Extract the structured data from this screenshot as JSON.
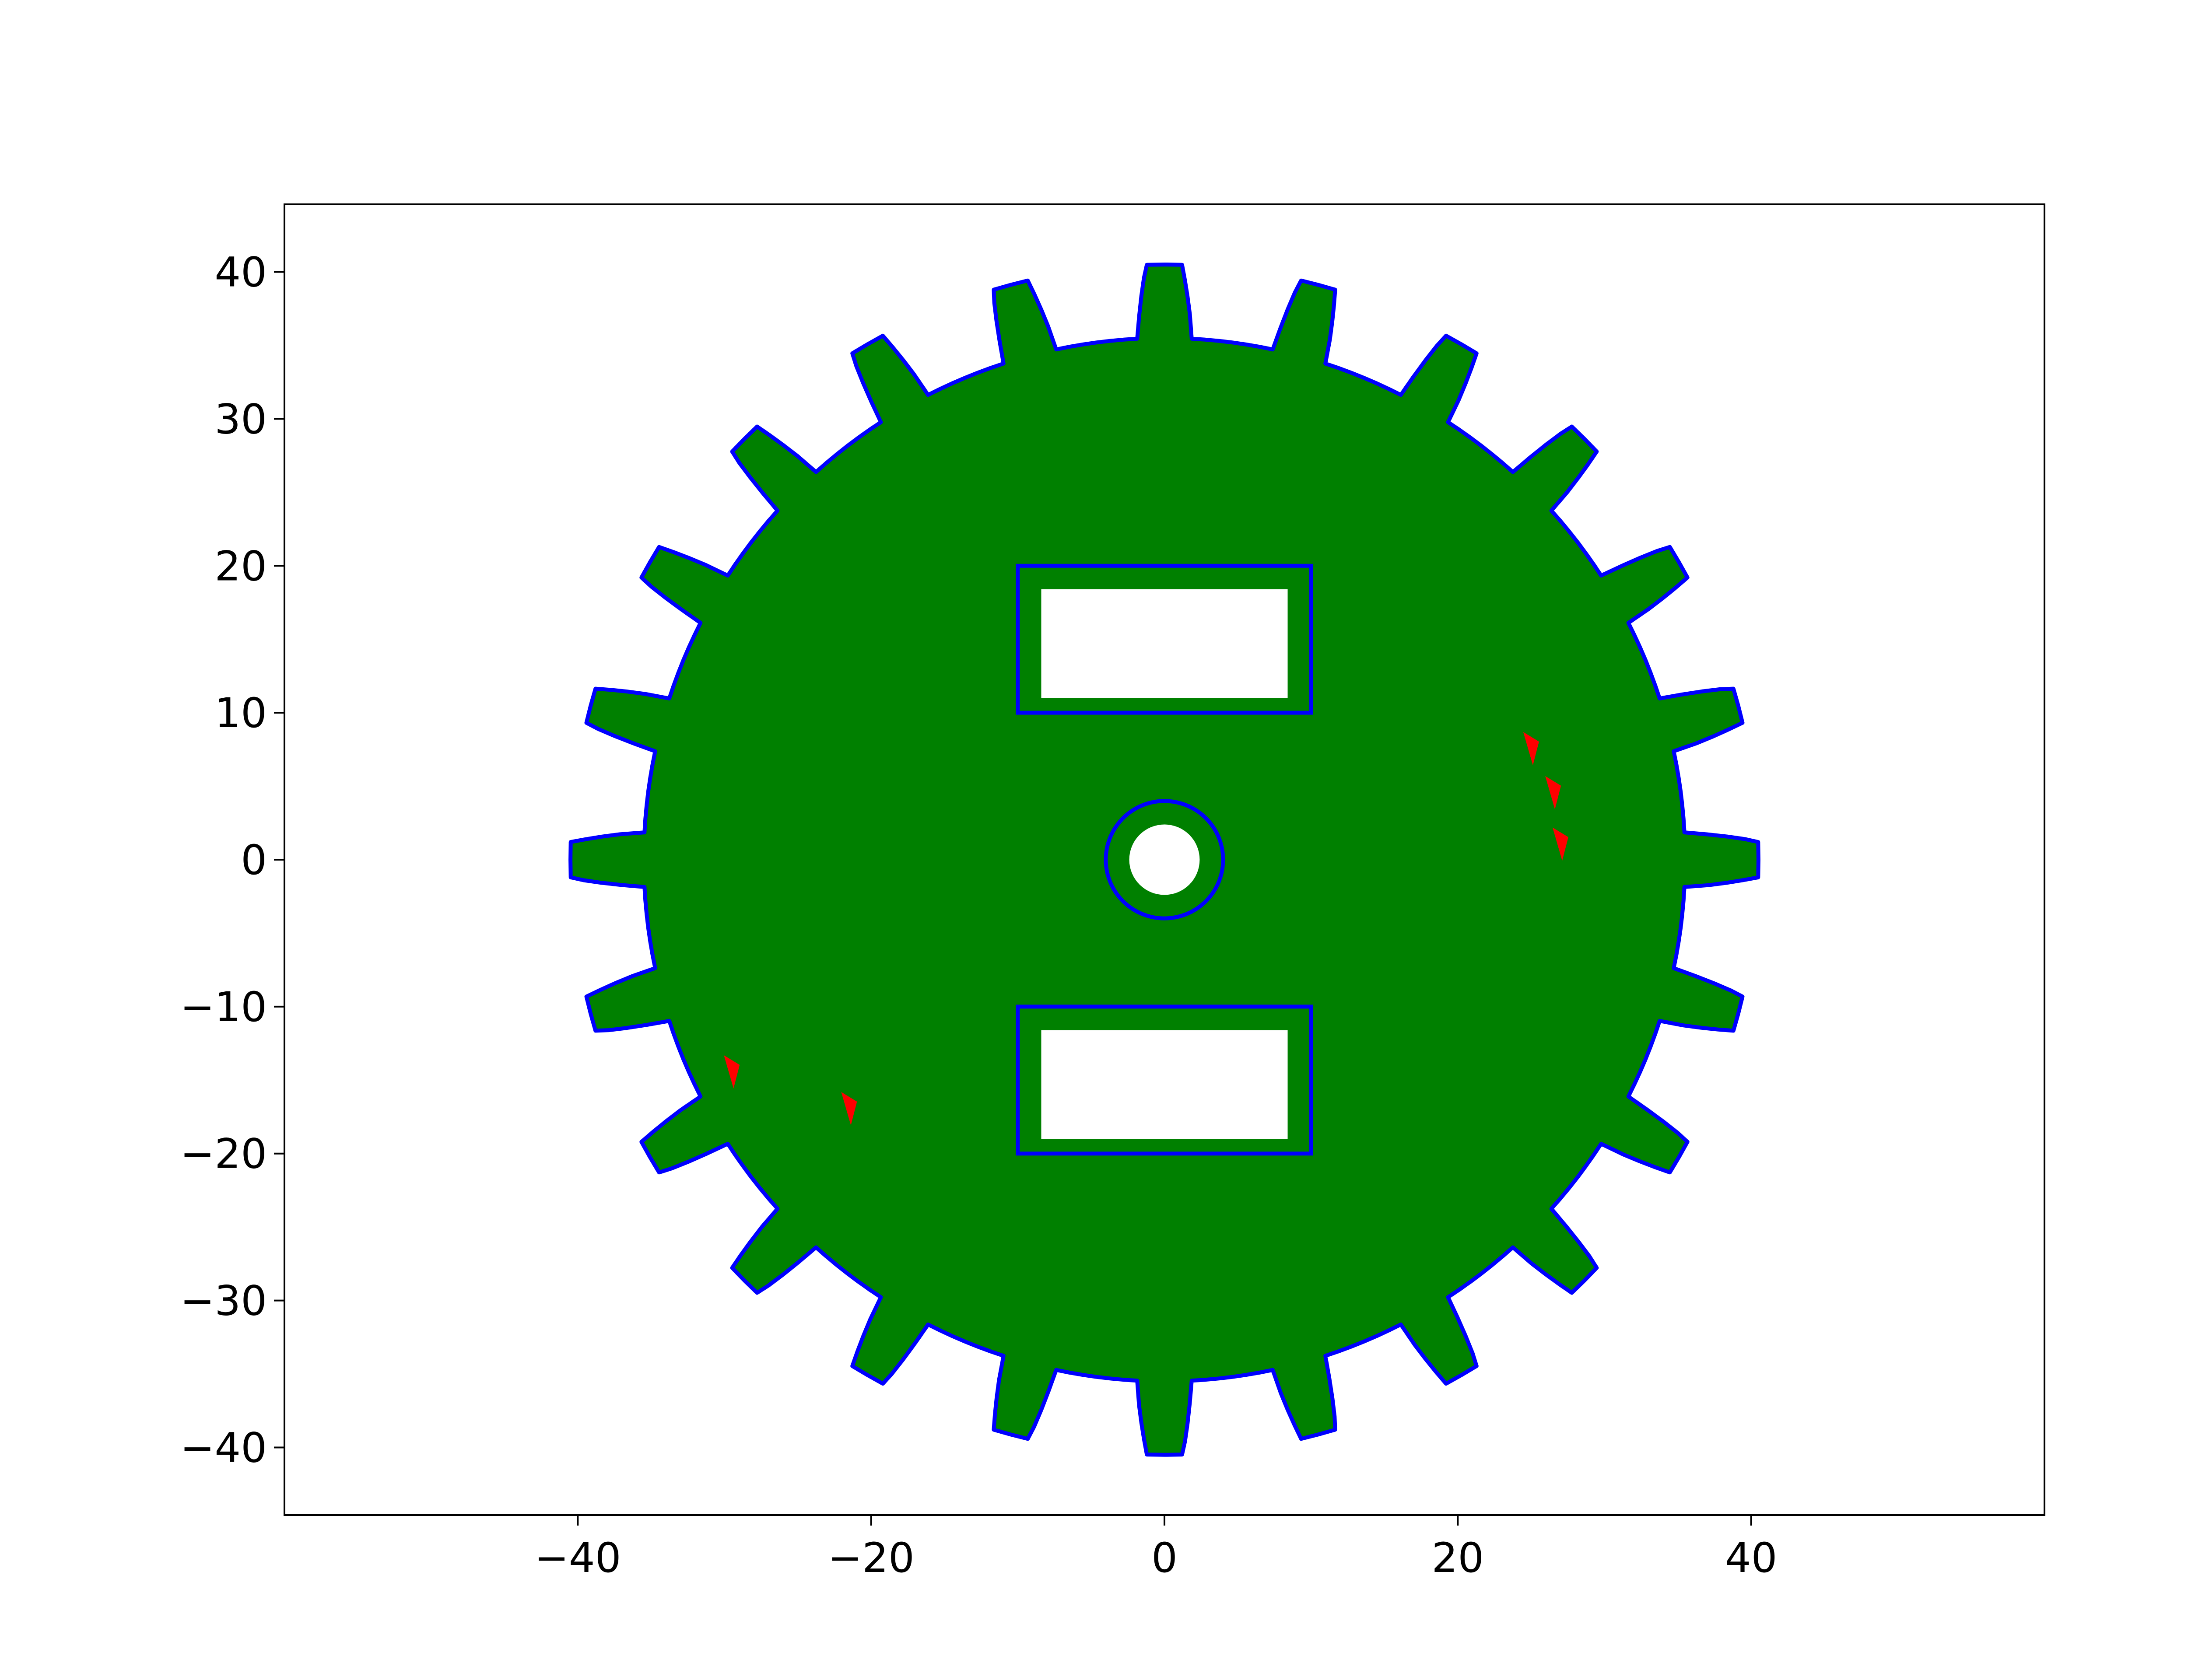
{
  "chart_data": {
    "type": "line",
    "title": "",
    "xlabel": "",
    "ylabel": "",
    "xlim": [
      -60,
      60
    ],
    "ylim": [
      -44.6,
      44.6
    ],
    "x_ticks": [
      -40,
      -20,
      0,
      20,
      40
    ],
    "y_ticks": [
      -40,
      -30,
      -20,
      -10,
      0,
      10,
      20,
      30,
      40
    ],
    "x_tick_labels": [
      "−40",
      "−20",
      "0",
      "20",
      "40"
    ],
    "y_tick_labels": [
      "−40",
      "−30",
      "−20",
      "−10",
      "0",
      "10",
      "20",
      "30",
      "40"
    ],
    "grid": false,
    "legend": "none",
    "colors": {
      "fill": "#008000",
      "outline": "#0000ff",
      "marks": "#ff0000",
      "frame": "#000000"
    },
    "gear": {
      "teeth": 24,
      "outer_radius": 40.5,
      "root_radius": 35.5,
      "tip_angle_deg": 3.4,
      "root_angle_deg": 9.0,
      "phase_deg": 0
    },
    "bore": {
      "center": [
        0,
        0
      ],
      "radius": 4.0,
      "inner_radius": 2.4
    },
    "cutouts": [
      {
        "name": "upper-slot",
        "x": [
          -10,
          10
        ],
        "y": [
          10,
          20
        ]
      },
      {
        "name": "lower-slot",
        "x": [
          -10,
          10
        ],
        "y": [
          -20,
          -10
        ]
      }
    ],
    "red_marks": [
      {
        "x": 25.0,
        "y": 7.5
      },
      {
        "x": 26.5,
        "y": 4.5
      },
      {
        "x": 27.0,
        "y": 1.0
      },
      {
        "x": -29.5,
        "y": -14.5
      },
      {
        "x": -21.5,
        "y": -17.0
      }
    ]
  }
}
